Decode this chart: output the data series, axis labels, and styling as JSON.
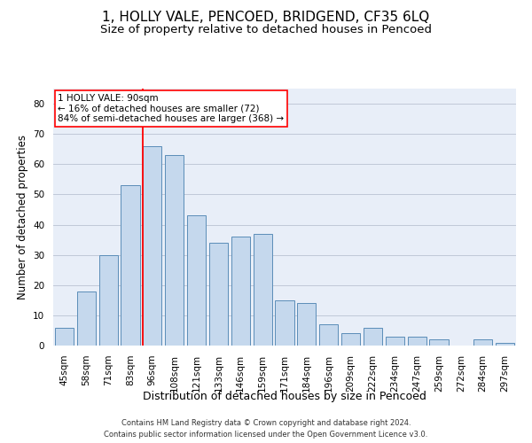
{
  "title": "1, HOLLY VALE, PENCOED, BRIDGEND, CF35 6LQ",
  "subtitle": "Size of property relative to detached houses in Pencoed",
  "xlabel": "Distribution of detached houses by size in Pencoed",
  "ylabel": "Number of detached properties",
  "categories": [
    "45sqm",
    "58sqm",
    "71sqm",
    "83sqm",
    "96sqm",
    "108sqm",
    "121sqm",
    "133sqm",
    "146sqm",
    "159sqm",
    "171sqm",
    "184sqm",
    "196sqm",
    "209sqm",
    "222sqm",
    "234sqm",
    "247sqm",
    "259sqm",
    "272sqm",
    "284sqm",
    "297sqm"
  ],
  "values": [
    6,
    18,
    30,
    53,
    66,
    63,
    43,
    34,
    36,
    37,
    15,
    14,
    7,
    4,
    6,
    3,
    3,
    2,
    0,
    2,
    1
  ],
  "bar_color": "#c5d8ed",
  "bar_edge_color": "#5b8db8",
  "vline_color": "red",
  "vline_pos": 3.57,
  "annotation_text_lines": [
    "1 HOLLY VALE: 90sqm",
    "← 16% of detached houses are smaller (72)",
    "84% of semi-detached houses are larger (368) →"
  ],
  "annotation_box_color": "white",
  "annotation_box_edge_color": "red",
  "ylim": [
    0,
    85
  ],
  "yticks": [
    0,
    10,
    20,
    30,
    40,
    50,
    60,
    70,
    80
  ],
  "grid_color": "#c0c8d8",
  "background_color": "#e8eef8",
  "footer_line1": "Contains HM Land Registry data © Crown copyright and database right 2024.",
  "footer_line2": "Contains public sector information licensed under the Open Government Licence v3.0.",
  "title_fontsize": 11,
  "subtitle_fontsize": 9.5,
  "xlabel_fontsize": 9,
  "ylabel_fontsize": 8.5,
  "tick_fontsize": 7.5,
  "annotation_fontsize": 7.5,
  "footer_fontsize": 6
}
